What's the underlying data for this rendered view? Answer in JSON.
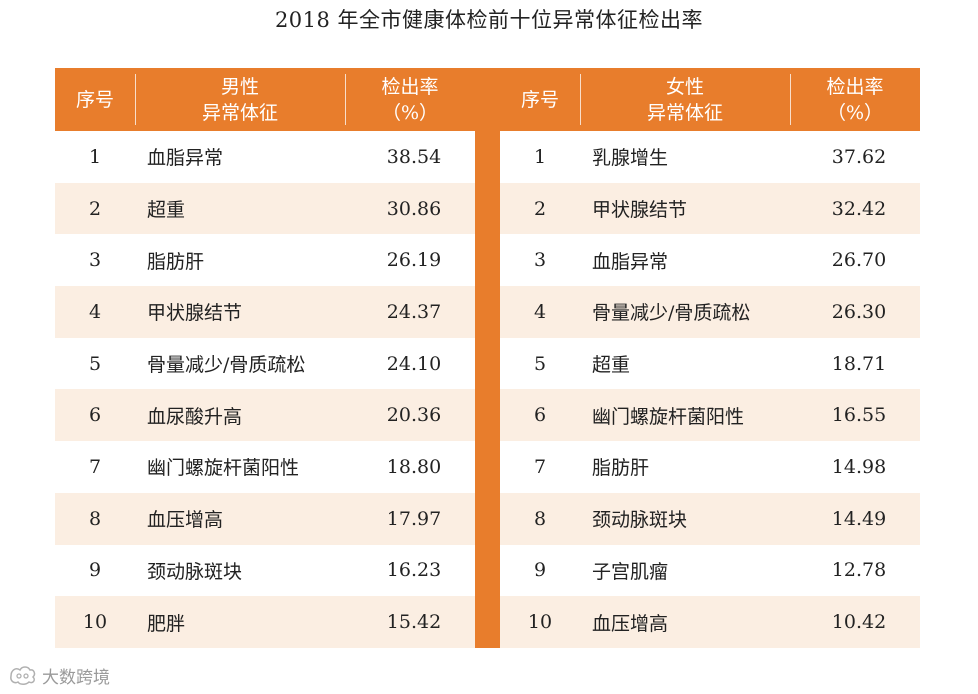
{
  "title": "2018 年全市健康体检前十位异常体征检出率",
  "colors": {
    "accent": "#e87d2c",
    "stripe": "#fbeee2",
    "header_text": "#ffffff"
  },
  "male": {
    "header": {
      "index": "序号",
      "name_line1": "男性",
      "name_line2": "异常体征",
      "rate_line1": "检出率",
      "rate_line2": "（%）"
    },
    "rows": [
      {
        "index": "1",
        "name": "血脂异常",
        "rate": "38.54"
      },
      {
        "index": "2",
        "name": "超重",
        "rate": "30.86"
      },
      {
        "index": "3",
        "name": "脂肪肝",
        "rate": "26.19"
      },
      {
        "index": "4",
        "name": "甲状腺结节",
        "rate": "24.37"
      },
      {
        "index": "5",
        "name": "骨量减少/骨质疏松",
        "rate": "24.10"
      },
      {
        "index": "6",
        "name": "血尿酸升高",
        "rate": "20.36"
      },
      {
        "index": "7",
        "name": "幽门螺旋杆菌阳性",
        "rate": "18.80"
      },
      {
        "index": "8",
        "name": "血压增高",
        "rate": "17.97"
      },
      {
        "index": "9",
        "name": "颈动脉斑块",
        "rate": "16.23"
      },
      {
        "index": "10",
        "name": "肥胖",
        "rate": "15.42"
      }
    ]
  },
  "female": {
    "header": {
      "index": "序号",
      "name_line1": "女性",
      "name_line2": "异常体征",
      "rate_line1": "检出率",
      "rate_line2": "（%）"
    },
    "rows": [
      {
        "index": "1",
        "name": "乳腺增生",
        "rate": "37.62"
      },
      {
        "index": "2",
        "name": "甲状腺结节",
        "rate": "32.42"
      },
      {
        "index": "3",
        "name": "血脂异常",
        "rate": "26.70"
      },
      {
        "index": "4",
        "name": "骨量减少/骨质疏松",
        "rate": "26.30"
      },
      {
        "index": "5",
        "name": "超重",
        "rate": "18.71"
      },
      {
        "index": "6",
        "name": "幽门螺旋杆菌阳性",
        "rate": "16.55"
      },
      {
        "index": "7",
        "name": "脂肪肝",
        "rate": "14.98"
      },
      {
        "index": "8",
        "name": "颈动脉斑块",
        "rate": "14.49"
      },
      {
        "index": "9",
        "name": "子宫肌瘤",
        "rate": "12.78"
      },
      {
        "index": "10",
        "name": "血压增高",
        "rate": "10.42"
      }
    ]
  },
  "watermark": {
    "text": "大数跨境"
  }
}
